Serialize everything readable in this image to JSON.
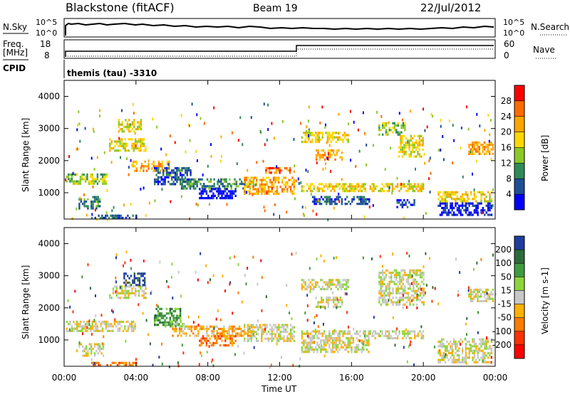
{
  "header": {
    "station": "Blackstone (fitACF)",
    "beam": "Beam 19",
    "date": "22/Jul/2012"
  },
  "top_panels": {
    "nsky_label": "N.Sky",
    "nsearch_label": "N.Search",
    "nsky_ticks": [
      "10^5",
      "10^0"
    ],
    "freq_label": "Freq.",
    "freq_unit": "[MHz]",
    "freq_ticks": [
      "18",
      "8"
    ],
    "nave_label": "Nave",
    "nave_ticks": [
      "60",
      "0"
    ],
    "cpid_label": "CPID",
    "cpid_value": "themis (tau) -3310"
  },
  "x_axis": {
    "label": "Time UT",
    "ticks": [
      "00:00",
      "04:00",
      "08:00",
      "12:00",
      "16:00",
      "20:00",
      "00:00"
    ]
  },
  "chart_data": [
    {
      "type": "heatmap",
      "name": "power",
      "ylabel": "Slant Range [km]",
      "yticks": [
        1000,
        2000,
        3000,
        4000
      ],
      "ylim": [
        180,
        4500
      ],
      "xlim": [
        0,
        24
      ],
      "colorbar": {
        "label": "Power [dB]",
        "ticks": [
          "28",
          "24",
          "20",
          "16",
          "12",
          "8",
          "4"
        ],
        "colors": [
          "#ff0000",
          "#ff6a00",
          "#ffa500",
          "#ffd700",
          "#8ac926",
          "#2e8b57",
          "#1f4e96",
          "#0000ff"
        ]
      },
      "regions": [
        {
          "t0": 0.1,
          "t1": 2.3,
          "r0": 1250,
          "r1": 1600,
          "level": 4
        },
        {
          "t0": 0.8,
          "t1": 2.0,
          "r0": 500,
          "r1": 900,
          "level": 5
        },
        {
          "t0": 1.5,
          "t1": 4.0,
          "r0": 180,
          "r1": 320,
          "level": 6
        },
        {
          "t0": 2.5,
          "t1": 4.5,
          "r0": 2300,
          "r1": 2700,
          "level": 3
        },
        {
          "t0": 3.0,
          "t1": 4.3,
          "r0": 2900,
          "r1": 3300,
          "level": 3
        },
        {
          "t0": 3.8,
          "t1": 5.8,
          "r0": 1700,
          "r1": 2000,
          "level": 2
        },
        {
          "t0": 5.0,
          "t1": 7.0,
          "r0": 1300,
          "r1": 1800,
          "level": 6
        },
        {
          "t0": 6.5,
          "t1": 10.5,
          "r0": 1150,
          "r1": 1450,
          "level": 5
        },
        {
          "t0": 7.5,
          "t1": 9.5,
          "r0": 850,
          "r1": 1150,
          "level": 7
        },
        {
          "t0": 10.0,
          "t1": 12.8,
          "r0": 1000,
          "r1": 1500,
          "level": 2
        },
        {
          "t0": 11.2,
          "t1": 12.6,
          "r0": 1650,
          "r1": 1800,
          "level": 1
        },
        {
          "t0": 13.2,
          "t1": 16.8,
          "r0": 1050,
          "r1": 1300,
          "level": 3
        },
        {
          "t0": 13.8,
          "t1": 17.0,
          "r0": 650,
          "r1": 900,
          "level": 6
        },
        {
          "t0": 13.2,
          "t1": 15.8,
          "r0": 2600,
          "r1": 2900,
          "level": 3
        },
        {
          "t0": 14.0,
          "t1": 15.5,
          "r0": 2050,
          "r1": 2350,
          "level": 2
        },
        {
          "t0": 17.0,
          "t1": 20.0,
          "r0": 1050,
          "r1": 1300,
          "level": 3
        },
        {
          "t0": 17.5,
          "t1": 19.0,
          "r0": 2800,
          "r1": 3200,
          "level": 4
        },
        {
          "t0": 18.6,
          "t1": 20.0,
          "r0": 2100,
          "r1": 2800,
          "level": 3
        },
        {
          "t0": 18.5,
          "t1": 19.5,
          "r0": 550,
          "r1": 800,
          "level": 6
        },
        {
          "t0": 20.8,
          "t1": 23.8,
          "r0": 300,
          "r1": 700,
          "level": 7
        },
        {
          "t0": 20.8,
          "t1": 23.8,
          "r0": 700,
          "r1": 1050,
          "level": 3
        },
        {
          "t0": 22.5,
          "t1": 23.9,
          "r0": 2200,
          "r1": 2600,
          "level": 2
        }
      ]
    },
    {
      "type": "heatmap",
      "name": "velocity",
      "ylabel": "Slant Range [km]",
      "yticks": [
        1000,
        2000,
        3000,
        4000
      ],
      "ylim": [
        180,
        4500
      ],
      "xlim": [
        0,
        24
      ],
      "colorbar": {
        "label": "Velocity [m s-1]",
        "ticks": [
          "200",
          "100",
          "50",
          "15",
          "-15",
          "-50",
          "-100",
          "-200"
        ],
        "colors": [
          "#1f3d9e",
          "#2e6b3a",
          "#3e9b3e",
          "#8cd63c",
          "#c8c8c8",
          "#ffb000",
          "#ff7a00",
          "#ff3000",
          "#ff0000"
        ]
      },
      "regions": [
        {
          "t0": 0.1,
          "t1": 4.0,
          "r0": 1250,
          "r1": 1600,
          "level": 4
        },
        {
          "t0": 0.8,
          "t1": 2.2,
          "r0": 500,
          "r1": 900,
          "level": 4
        },
        {
          "t0": 1.5,
          "t1": 4.0,
          "r0": 180,
          "r1": 320,
          "level": 6
        },
        {
          "t0": 2.5,
          "t1": 4.5,
          "r0": 2300,
          "r1": 2700,
          "level": 4
        },
        {
          "t0": 3.3,
          "t1": 4.5,
          "r0": 2700,
          "r1": 3100,
          "level": 0
        },
        {
          "t0": 5.0,
          "t1": 6.5,
          "r0": 1500,
          "r1": 2000,
          "level": 2
        },
        {
          "t0": 6.0,
          "t1": 10.5,
          "r0": 1150,
          "r1": 1450,
          "level": 5
        },
        {
          "t0": 7.5,
          "t1": 9.5,
          "r0": 850,
          "r1": 1150,
          "level": 6
        },
        {
          "t0": 5.5,
          "t1": 6.8,
          "r0": 1400,
          "r1": 1600,
          "level": 3
        },
        {
          "t0": 10.0,
          "t1": 12.8,
          "r0": 1000,
          "r1": 1500,
          "level": 4
        },
        {
          "t0": 13.2,
          "t1": 17.0,
          "r0": 650,
          "r1": 1300,
          "level": 4
        },
        {
          "t0": 13.2,
          "t1": 15.8,
          "r0": 2600,
          "r1": 2900,
          "level": 4
        },
        {
          "t0": 14.0,
          "t1": 15.5,
          "r0": 2050,
          "r1": 2350,
          "level": 4
        },
        {
          "t0": 17.0,
          "t1": 20.0,
          "r0": 1050,
          "r1": 1300,
          "level": 4
        },
        {
          "t0": 17.5,
          "t1": 20.0,
          "r0": 2100,
          "r1": 3200,
          "level": 4
        },
        {
          "t0": 20.8,
          "t1": 23.8,
          "r0": 300,
          "r1": 1050,
          "level": 4
        },
        {
          "t0": 22.5,
          "t1": 23.9,
          "r0": 2200,
          "r1": 2600,
          "level": 4
        }
      ]
    }
  ]
}
